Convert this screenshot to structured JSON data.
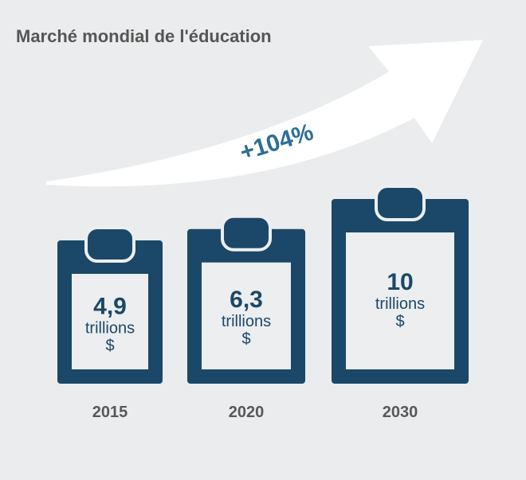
{
  "chart_data": {
    "type": "bar",
    "title": "Marché mondial de l'éducation",
    "categories": [
      "2015",
      "2020",
      "2030"
    ],
    "values": [
      4.9,
      6.3,
      10
    ],
    "value_labels": [
      "4,9",
      "6,3",
      "10"
    ],
    "unit_line1": "trillions",
    "unit_line2": "$",
    "growth_label": "+104%",
    "colors": {
      "background": "#ebeced",
      "clipboard": "#1b4868",
      "paper": "#eceeef",
      "text": "#1b4868",
      "growth": "#2c6e96",
      "year": "#585858",
      "title": "#565656"
    }
  }
}
